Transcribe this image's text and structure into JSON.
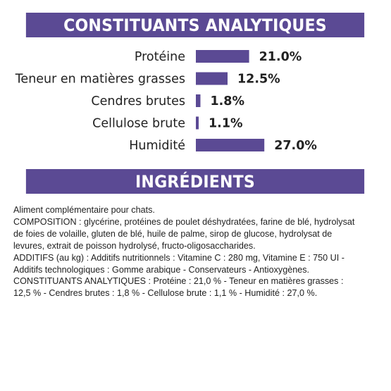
{
  "sections": {
    "analytics_title": "CONSTITUANTS ANALYTIQUES",
    "ingredients_title": "INGRÉDIENTS"
  },
  "chart_data": {
    "type": "bar",
    "orientation": "horizontal",
    "title": "CONSTITUANTS ANALYTIQUES",
    "categories": [
      "Protéine",
      "Teneur en matières grasses",
      "Cendres brutes",
      "Cellulose brute",
      "Humidité"
    ],
    "values": [
      21.0,
      12.5,
      1.8,
      1.1,
      27.0
    ],
    "value_labels": [
      "21.0%",
      "12.5%",
      "1.8%",
      "1.1%",
      "27.0%"
    ],
    "unit": "%",
    "bar_color": "#5b4a94",
    "xlabel": "",
    "ylabel": "",
    "grid": false
  },
  "ingredients_text": [
    "Aliment complémentaire pour chats.",
    "COMPOSITION : glycérine, protéines de poulet déshydratées, farine de blé, hydrolysat",
    "de foies de volaille, gluten de blé, huile de palme, sirop de glucose, hydrolysat de",
    "levures, extrait de poisson hydrolysé, fructo-oligosaccharides.",
    "ADDITIFS (au kg) : Additifs nutritionnels : Vitamine C : 280 mg, Vitamine E : 750 UI -",
    "Additifs technologiques : Gomme arabique - Conservateurs - Antioxygènes.",
    "CONSTITUANTS ANALYTIQUES : Protéine : 21,0 % - Teneur en matières grasses :",
    "12,5 % - Cendres brutes : 1,8 % - Cellulose brute : 1,1 % - Humidité : 27,0 %."
  ]
}
